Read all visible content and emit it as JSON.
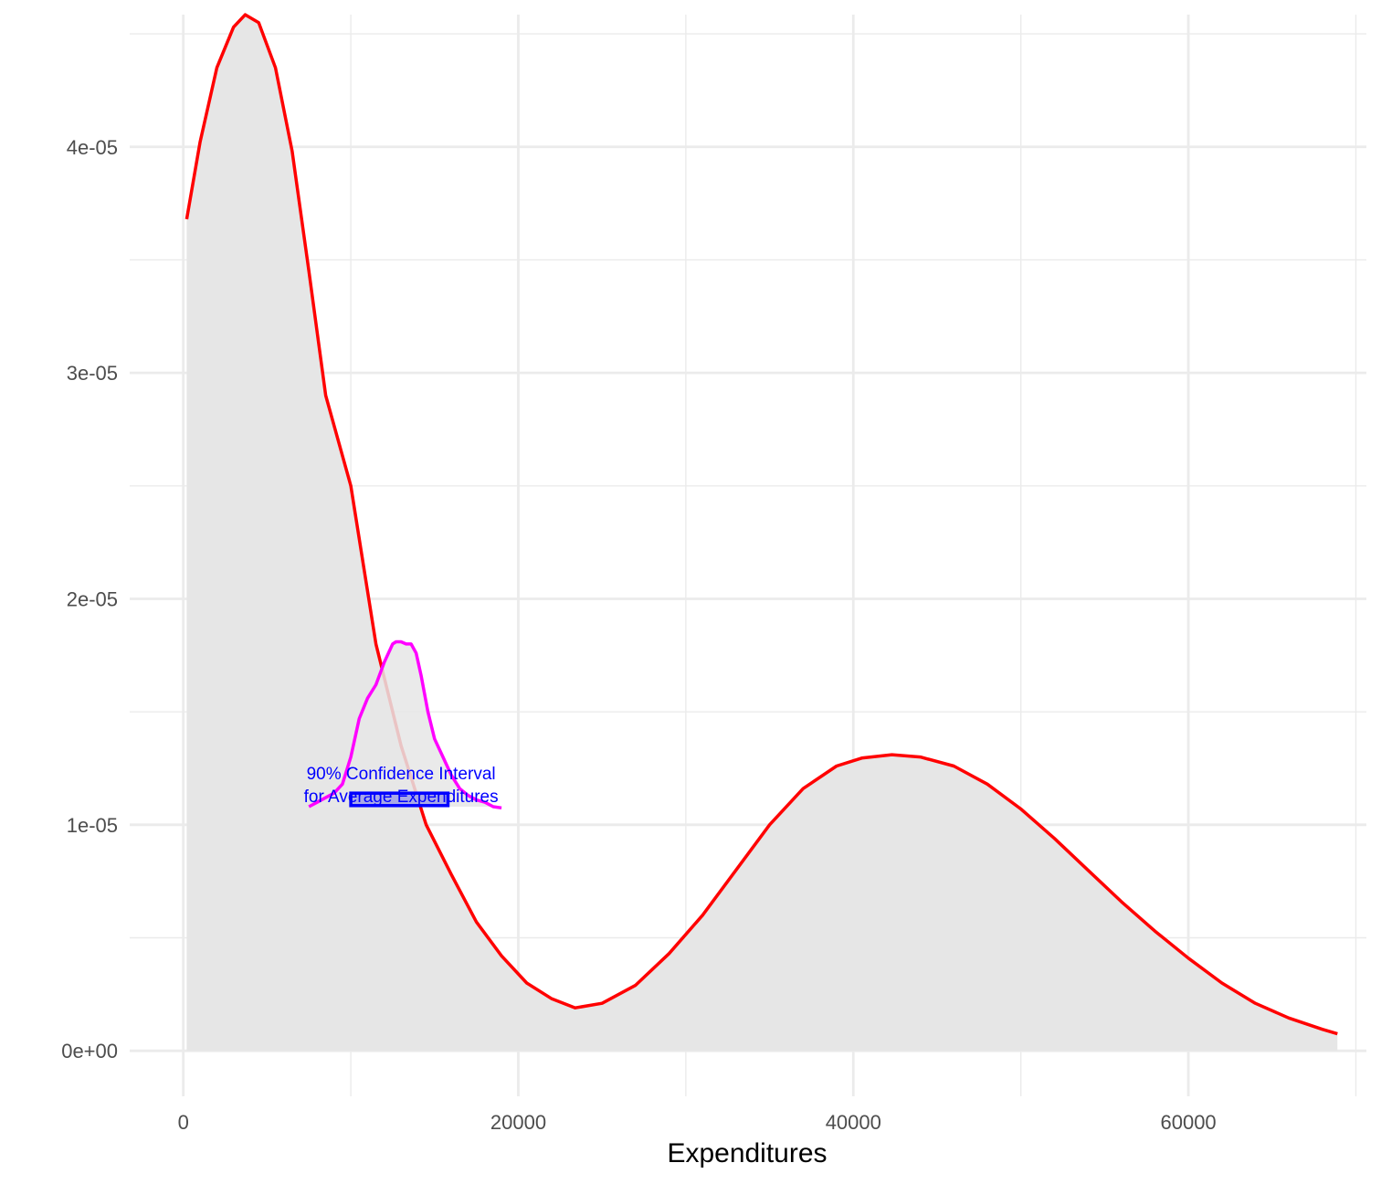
{
  "chart_data": {
    "type": "area",
    "xlabel": "Expenditures",
    "ylabel": "",
    "xlim": [
      -3200,
      71500
    ],
    "ylim": [
      -2.5e-06,
      4.65e-05
    ],
    "x_ticks": [
      {
        "value": 0,
        "label": "0"
      },
      {
        "value": 20000,
        "label": "20000"
      },
      {
        "value": 40000,
        "label": "40000"
      },
      {
        "value": 60000,
        "label": "60000"
      }
    ],
    "x_minor_ticks": [
      10000,
      30000,
      50000,
      70000
    ],
    "y_ticks": [
      {
        "value": 0,
        "label": "0e+00"
      },
      {
        "value": 1e-05,
        "label": "1e-05"
      },
      {
        "value": 2e-05,
        "label": "2e-05"
      },
      {
        "value": 3e-05,
        "label": "3e-05"
      },
      {
        "value": 4e-05,
        "label": "4e-05"
      }
    ],
    "y_minor_ticks": [
      5e-06,
      1.5e-05,
      2.5e-05,
      3.5e-05,
      4.5e-05
    ],
    "grid": true,
    "series": [
      {
        "kind": "density-area",
        "color": "#ff0000",
        "fill": "#e6e6e6",
        "x": [
          200,
          1000,
          2000,
          3000,
          3700,
          4500,
          5500,
          6500,
          7500,
          8500,
          10000,
          11500,
          13000,
          14500,
          16000,
          17500,
          19000,
          20500,
          22000,
          23400,
          25000,
          27000,
          29000,
          31000,
          33000,
          35000,
          37000,
          39000,
          40500,
          42300,
          44000,
          46000,
          48000,
          50000,
          52000,
          54000,
          56000,
          58000,
          60000,
          62000,
          64000,
          66000,
          68000,
          68900
        ],
        "y": [
          3.68e-05,
          4.02e-05,
          4.35e-05,
          4.53e-05,
          4.585e-05,
          4.55e-05,
          4.35e-05,
          3.98e-05,
          3.45e-05,
          2.9e-05,
          2.5e-05,
          1.8e-05,
          1.35e-05,
          1e-05,
          7.8e-06,
          5.7e-06,
          4.2e-06,
          3e-06,
          2.3e-06,
          1.9e-06,
          2.1e-06,
          2.9e-06,
          4.3e-06,
          6e-06,
          8e-06,
          1e-05,
          1.16e-05,
          1.26e-05,
          1.295e-05,
          1.31e-05,
          1.3e-05,
          1.26e-05,
          1.18e-05,
          1.07e-05,
          9.4e-06,
          8e-06,
          6.6e-06,
          5.3e-06,
          4.1e-06,
          3e-06,
          2.1e-06,
          1.45e-06,
          9.5e-07,
          7.5e-07
        ]
      },
      {
        "kind": "sampling-distribution",
        "color": "#ff00ff",
        "fill": "#e6e6e6",
        "baseline": 1.08e-05,
        "x": [
          7500,
          8000,
          8500,
          9000,
          9500,
          10000,
          10500,
          11000,
          11500,
          12000,
          12500,
          12700,
          13000,
          13300,
          13600,
          13900,
          14200,
          14600,
          15000,
          15500,
          16000,
          16500,
          17000,
          17500,
          18000,
          18500,
          19000
        ],
        "y": [
          1.08e-05,
          1.1e-05,
          1.12e-05,
          1.14e-05,
          1.18e-05,
          1.3e-05,
          1.47e-05,
          1.56e-05,
          1.62e-05,
          1.72e-05,
          1.8e-05,
          1.81e-05,
          1.81e-05,
          1.8e-05,
          1.8e-05,
          1.76e-05,
          1.66e-05,
          1.5e-05,
          1.38e-05,
          1.3e-05,
          1.22e-05,
          1.16e-05,
          1.13e-05,
          1.11e-05,
          1.1e-05,
          1.08e-05,
          1.075e-05
        ]
      }
    ],
    "interval": {
      "xmin": 10000,
      "xmax": 15800,
      "ymin": 1.085e-05,
      "ymax": 1.14e-05,
      "stroke": "#0000ff",
      "fill": "#9e9ee6"
    },
    "annotation": {
      "lines": [
        "90% Confidence Interval",
        "for Average Expenditures"
      ],
      "x": 13000,
      "color": "#0000ff"
    }
  }
}
